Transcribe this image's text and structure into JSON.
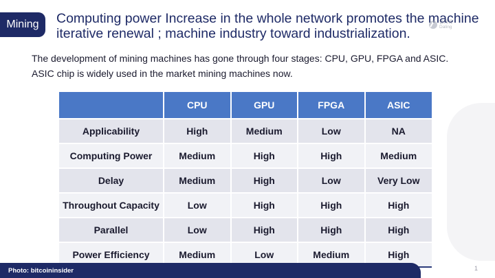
{
  "header": {
    "tag": "Mining",
    "title": "Computing power Increase in the whole network promotes the machine iterative renewal ; machine industry toward industrialization.",
    "logo_line1": "链得得",
    "logo_line2": "Daling"
  },
  "intro": {
    "line1": "The development of mining machines has gone through four stages: CPU, GPU, FPGA and ASIC.",
    "line2": "ASIC chip is widely used in the market mining machines now."
  },
  "table": {
    "headers": [
      "",
      "CPU",
      "GPU",
      "FPGA",
      "ASIC"
    ],
    "rows": [
      [
        "Applicability",
        "High",
        "Medium",
        "Low",
        "NA"
      ],
      [
        "Computing Power",
        "Medium",
        "High",
        "High",
        "Medium"
      ],
      [
        "Delay",
        "Medium",
        "High",
        "Low",
        "Very Low"
      ],
      [
        "Throughout Capacity",
        "Low",
        "High",
        "High",
        "High"
      ],
      [
        "Parallel",
        "Low",
        "High",
        "High",
        "High"
      ],
      [
        "Power Efficiency",
        "Medium",
        "Low",
        "Medium",
        "High"
      ]
    ]
  },
  "footer": {
    "credit": "Photo:  bitcoininsider",
    "page": "1"
  },
  "colors": {
    "brand_navy": "#1e2a66",
    "header_blue": "#4a78c6",
    "row_dark": "#e3e4ec",
    "row_light": "#f1f2f6"
  }
}
